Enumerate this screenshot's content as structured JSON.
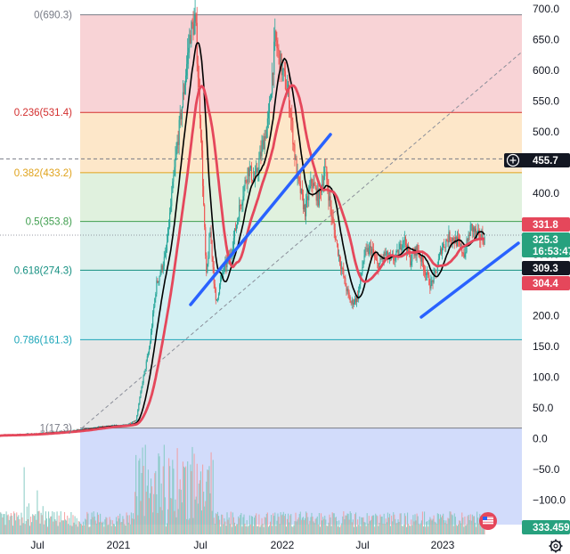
{
  "chart_data": {
    "type": "candlestick",
    "y_axis": {
      "ylim": [
        -140,
        700
      ],
      "ticks": [
        700,
        650,
        600,
        550,
        500,
        450,
        400,
        350,
        300,
        250,
        200,
        150,
        100,
        50,
        0,
        -50,
        -100
      ],
      "tick_labels": [
        "700.0",
        "650.0",
        "600.0",
        "550.0",
        "500.0",
        "450.0",
        "400.0",
        "350.0",
        "300.0",
        "250.0",
        "200.0",
        "150.0",
        "100.0",
        "50.0",
        "0.0",
        "−50.0",
        "−100.0"
      ]
    },
    "x_axis": {
      "ticks": [
        {
          "label": "Jul"
        },
        {
          "label": "2021"
        },
        {
          "label": "Jul"
        },
        {
          "label": "2022"
        },
        {
          "label": "Jul"
        },
        {
          "label": "2023"
        }
      ]
    },
    "fibonacci": [
      {
        "ratio": 0,
        "price": 690.3,
        "label": "0(690.3)",
        "color": "#787b86",
        "fill": "#f8d3d6"
      },
      {
        "ratio": 0.236,
        "price": 531.4,
        "label": "0.236(531.4)",
        "color": "#d32f2f",
        "fill": "#fde7c9"
      },
      {
        "ratio": 0.382,
        "price": 433.2,
        "label": "0.382(433.2)",
        "color": "#e0a31c",
        "fill": "#e0f1de"
      },
      {
        "ratio": 0.5,
        "price": 353.8,
        "label": "0.5(353.8)",
        "color": "#3f9e4e",
        "fill": "#dcf0ec"
      },
      {
        "ratio": 0.618,
        "price": 274.3,
        "label": "0.618(274.3)",
        "color": "#138f80",
        "fill": "#d3f0f3"
      },
      {
        "ratio": 0.786,
        "price": 161.3,
        "label": "0.786(161.3)",
        "color": "#1aa5b8",
        "fill": "#e6e6e6"
      },
      {
        "ratio": 1,
        "price": 17.3,
        "label": "1(17.3)",
        "color": "#787b86",
        "fill": "#d2dcfb"
      }
    ],
    "moving_averages": [
      {
        "color": "#000000"
      },
      {
        "color": "#e5475b"
      }
    ],
    "price_badges": [
      {
        "value": "455.7",
        "bg": "#131722",
        "fg": "#ffffff",
        "icon": "plus-circle-icon"
      },
      {
        "value": "331.8",
        "bg": "#e5475b",
        "fg": "#ffffff"
      },
      {
        "value": "325.3",
        "bg": "#27a17e",
        "fg": "#ffffff",
        "sub": "16:53:47"
      },
      {
        "value": "309.3",
        "bg": "#131722",
        "fg": "#ffffff"
      },
      {
        "value": "304.4",
        "bg": "#e5475b",
        "fg": "#ffffff"
      },
      {
        "value": "333.459",
        "bg": "#27a17e",
        "fg": "#ffffff"
      }
    ],
    "crosshair_price": 455.7,
    "icons": [
      "us-flag-icon",
      "gear-icon"
    ]
  }
}
